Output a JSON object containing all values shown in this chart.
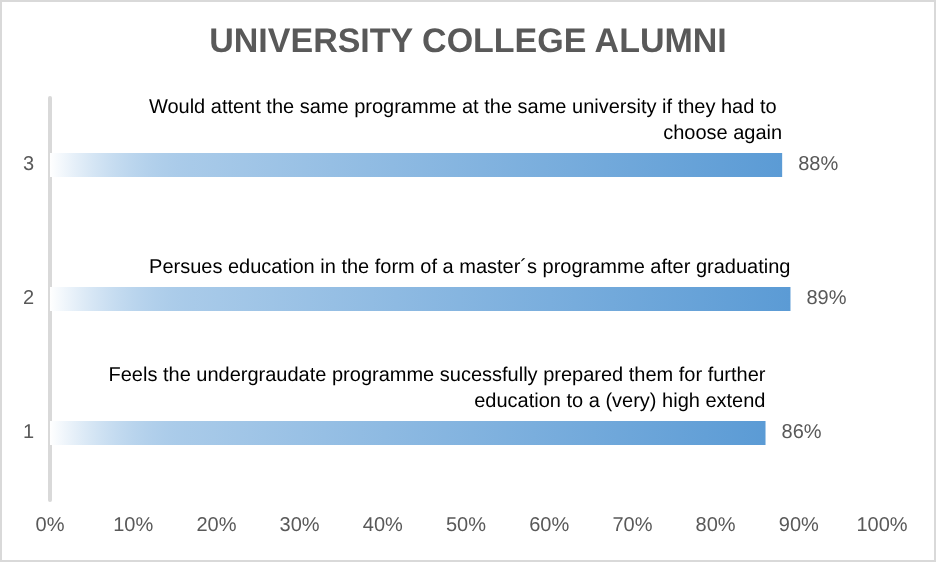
{
  "chart_data": {
    "type": "bar",
    "orientation": "horizontal",
    "title": "UNIVERSITY COLLEGE ALUMNI",
    "categories": [
      "3",
      "2",
      "1"
    ],
    "values": [
      88,
      89,
      86
    ],
    "color": "#5b9bd5",
    "value_labels": [
      "88%",
      "89%",
      "86%"
    ],
    "xlim": [
      0,
      100
    ],
    "xticks": [
      {
        "value": 0,
        "label": "0%"
      },
      {
        "value": 10,
        "label": "10%"
      },
      {
        "value": 20,
        "label": "20%"
      },
      {
        "value": 30,
        "label": "30%"
      },
      {
        "value": 40,
        "label": "40%"
      },
      {
        "value": 50,
        "label": "50%"
      },
      {
        "value": 60,
        "label": "60%"
      },
      {
        "value": 70,
        "label": "70%"
      },
      {
        "value": 80,
        "label": "80%"
      },
      {
        "value": 90,
        "label": "90%"
      },
      {
        "value": 100,
        "label": "100%"
      }
    ],
    "annotations": [
      {
        "text": "Would attent the same programme at the same university if they had to choose again",
        "x": 88,
        "y": "3"
      },
      {
        "text": "Persues education in the form of a master´s programme after graduating",
        "x": 89,
        "y": "2"
      },
      {
        "text": "Feels the undergraudate programme sucessfully prepared them for further education to a (very) high extend",
        "x": 86,
        "y": "1"
      }
    ],
    "grid": false
  }
}
